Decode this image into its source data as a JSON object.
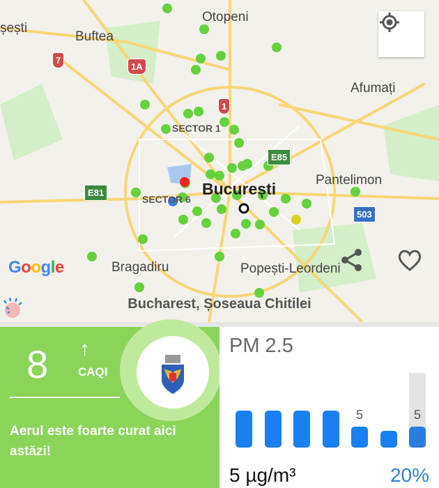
{
  "map": {
    "labels": {
      "sesti": "șești",
      "buftea": "Buftea",
      "otopeni": "Otopeni",
      "afumati": "Afumați",
      "sector1": "SECTOR 1",
      "sector6": "SECTOR 6",
      "bucuresti": "București",
      "pantelimon": "Pantelimon",
      "bragadiru": "Bragadiru",
      "popesti": "Popești-Leordeni"
    },
    "road_shields": {
      "r7": "7",
      "r1a": "1A",
      "r1": "1",
      "e85": "E85",
      "e81": "E81",
      "r503": "503"
    },
    "google_logo": "Google",
    "icons": [
      "my-location-icon",
      "share-icon",
      "heart-icon"
    ],
    "station_name": "Bucharest, Șoseaua Chitilei"
  },
  "aqi": {
    "value": "8",
    "trend": "↑",
    "index_label": "CAQI",
    "message": "Aerul este foarte curat aici astăzi!",
    "color": "#8ad45a"
  },
  "pollutant": {
    "name": "PM 2.5",
    "value_text": "5 µg/m³",
    "percent": "20%",
    "bars": [
      9,
      9,
      9,
      9,
      5,
      4,
      5
    ],
    "bar_labels": [
      "",
      "",
      "",
      "",
      "5",
      "",
      "5"
    ],
    "bar_color": "#1a7ff0"
  }
}
